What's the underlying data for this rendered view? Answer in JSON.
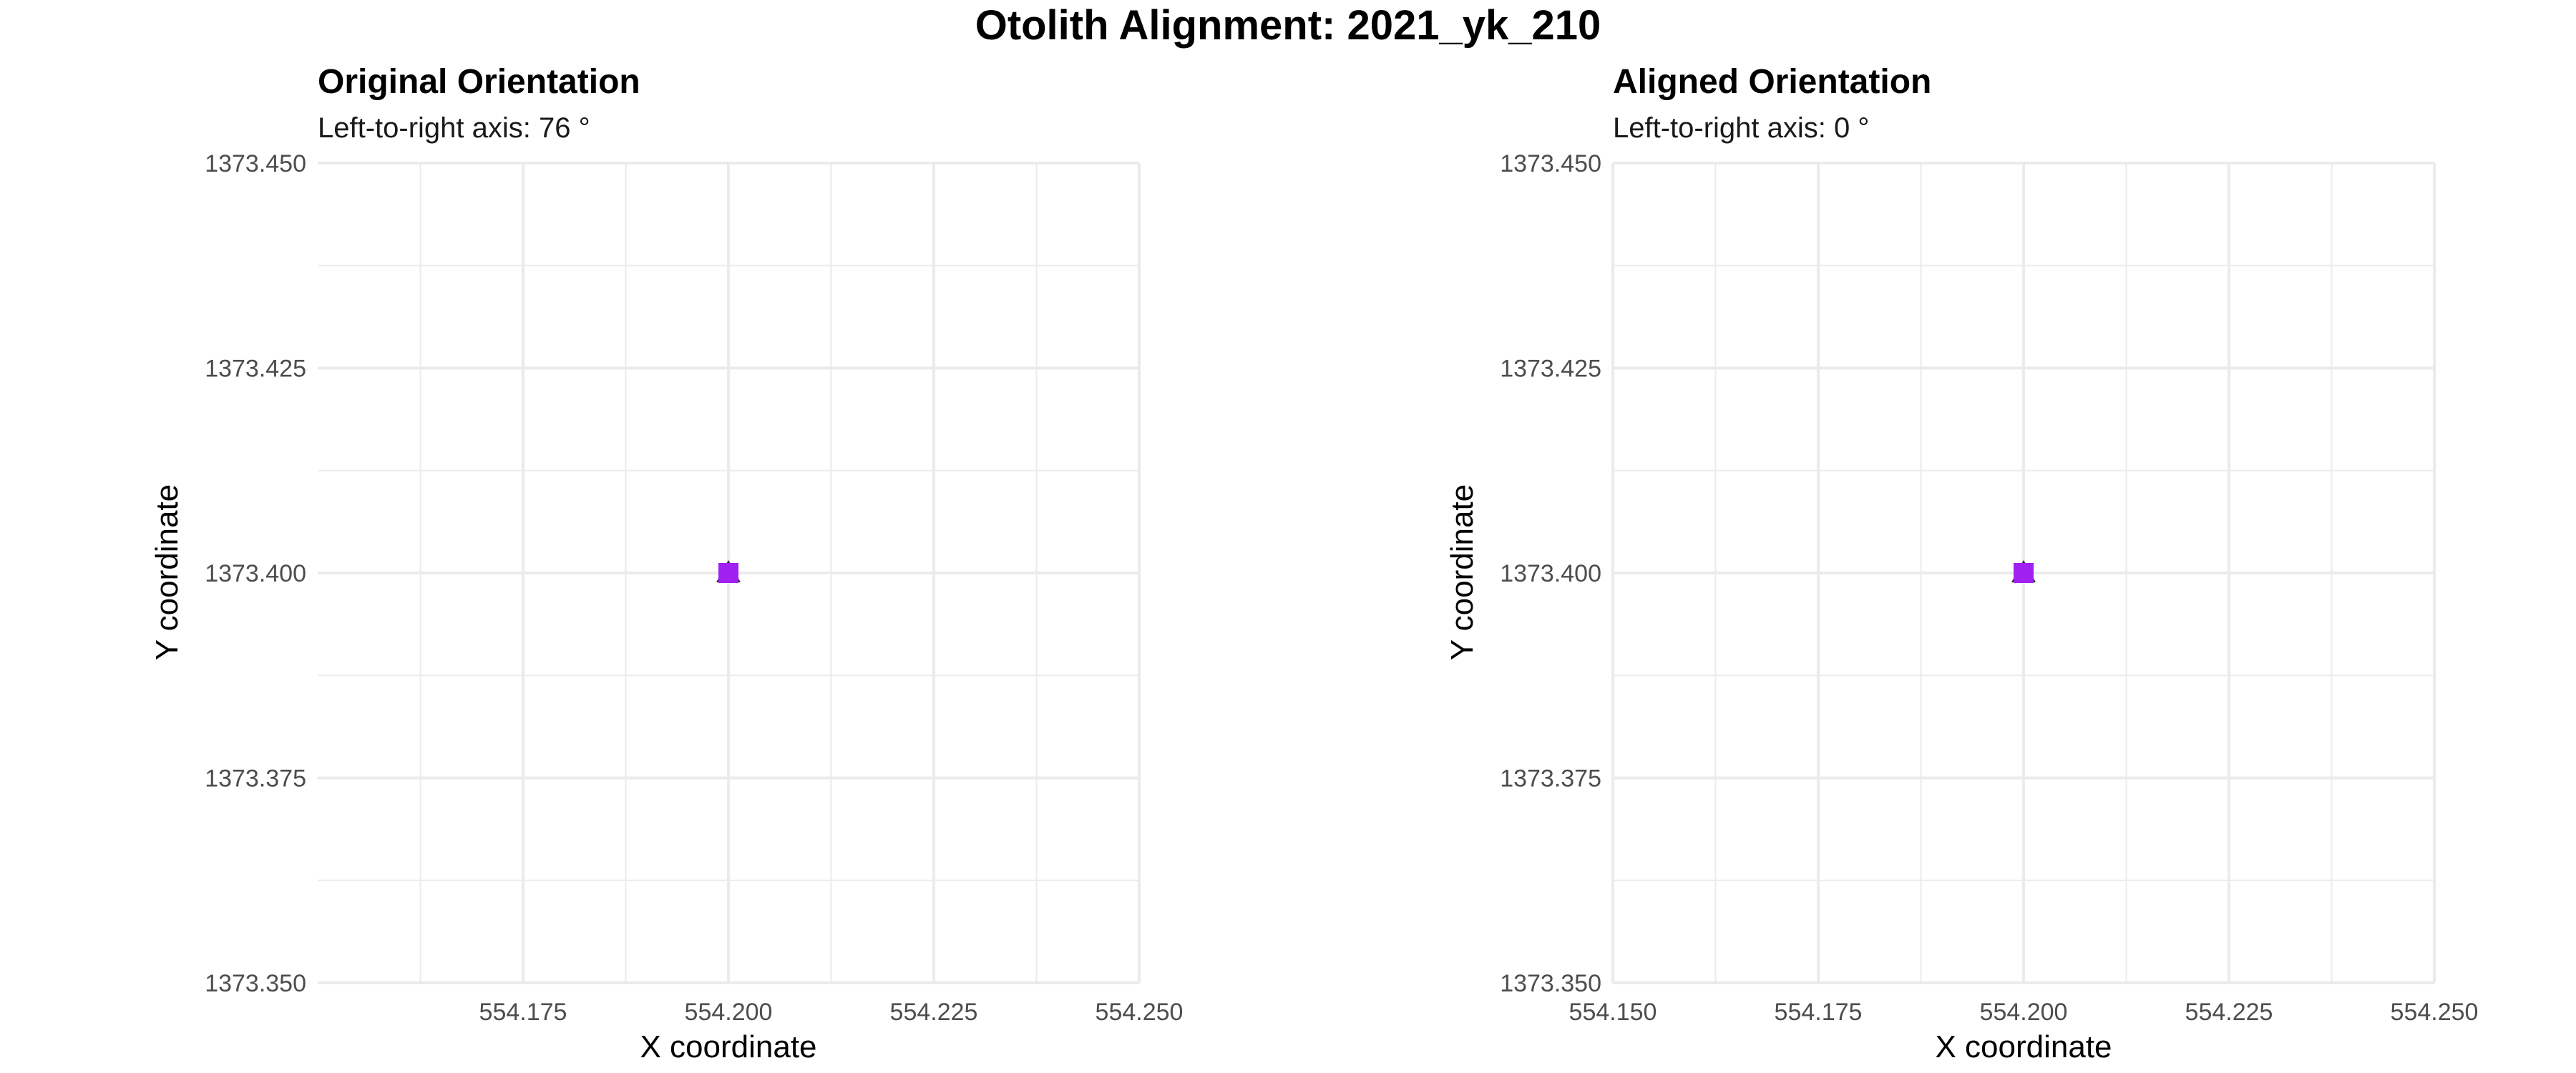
{
  "figure_title": "Otolith Alignment: 2021_yk_210",
  "colors": {
    "point_fill": "#a020f0",
    "point_outline": "#2b2b2b",
    "grid": "#ebebeb",
    "tick_text": "#4d4d4d"
  },
  "chart_data": [
    {
      "type": "scatter",
      "title": "Original Orientation",
      "subtitle": "Left-to-right axis: 76 °",
      "xlabel": "X coordinate",
      "ylabel": "Y coordinate",
      "xlim": [
        554.15,
        554.25
      ],
      "ylim": [
        1373.35,
        1373.45
      ],
      "x_ticks": [
        554.175,
        554.2,
        554.225,
        554.25
      ],
      "x_tick_labels": [
        "554.175",
        "554.200",
        "554.225",
        "554.250"
      ],
      "y_ticks": [
        1373.35,
        1373.375,
        1373.4,
        1373.425,
        1373.45
      ],
      "y_tick_labels": [
        "1373.350",
        "1373.375",
        "1373.400",
        "1373.425",
        "1373.450"
      ],
      "x_minor": [
        554.1625,
        554.1875,
        554.2125,
        554.2375
      ],
      "y_minor": [
        1373.3625,
        1373.3875,
        1373.4125,
        1373.4375
      ],
      "grid": true,
      "points": [
        {
          "x": 554.2,
          "y": 1373.4,
          "shape": "triangle"
        },
        {
          "x": 554.2,
          "y": 1373.4,
          "shape": "square"
        }
      ]
    },
    {
      "type": "scatter",
      "title": "Aligned Orientation",
      "subtitle": "Left-to-right axis: 0 °",
      "xlabel": "X coordinate",
      "ylabel": "Y coordinate",
      "xlim": [
        554.15,
        554.25
      ],
      "ylim": [
        1373.35,
        1373.45
      ],
      "x_ticks": [
        554.15,
        554.175,
        554.2,
        554.225,
        554.25
      ],
      "x_tick_labels": [
        "554.150",
        "554.175",
        "554.200",
        "554.225",
        "554.250"
      ],
      "y_ticks": [
        1373.35,
        1373.375,
        1373.4,
        1373.425,
        1373.45
      ],
      "y_tick_labels": [
        "1373.350",
        "1373.375",
        "1373.400",
        "1373.425",
        "1373.450"
      ],
      "x_minor": [
        554.1625,
        554.1875,
        554.2125,
        554.2375
      ],
      "y_minor": [
        1373.3625,
        1373.3875,
        1373.4125,
        1373.4375
      ],
      "grid": true,
      "points": [
        {
          "x": 554.2,
          "y": 1373.4,
          "shape": "triangle"
        },
        {
          "x": 554.2,
          "y": 1373.4,
          "shape": "square"
        }
      ]
    }
  ]
}
